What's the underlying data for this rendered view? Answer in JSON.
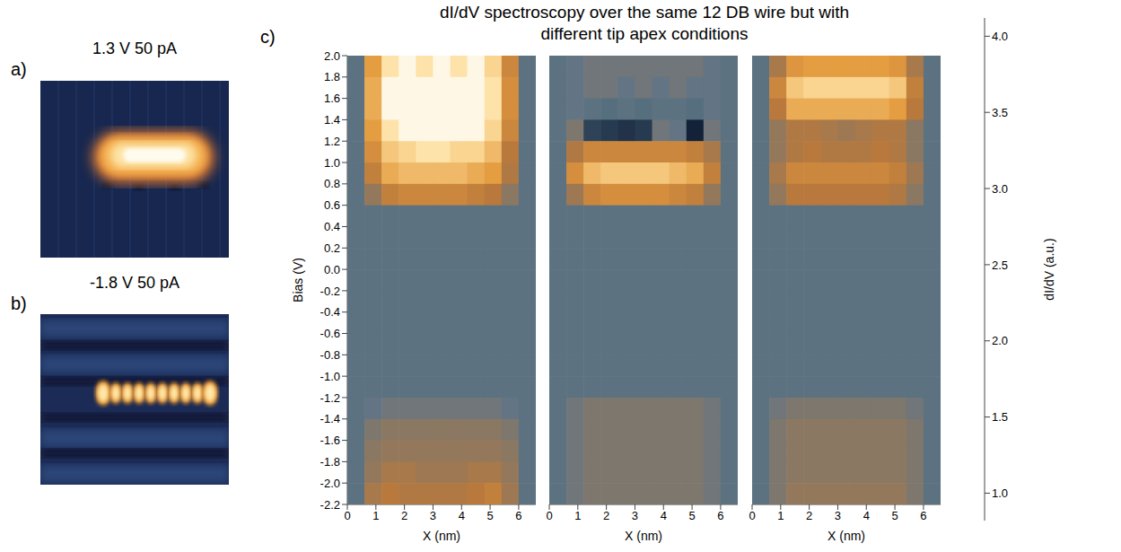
{
  "images": [
    {
      "label": "a)",
      "title": "1.3 V 50 pA"
    },
    {
      "label": "b)",
      "title": "-1.8 V 50 pA"
    }
  ],
  "chart_data": {
    "type": "heatmap",
    "label": "c)",
    "title": "dI/dV spectroscopy over the same 12 DB wire but with different tip apex conditions",
    "x_label": "X (nm)",
    "y_label": "Bias (V)",
    "xlim": [
      0,
      6.6
    ],
    "xticks": [
      0,
      1,
      2,
      3,
      4,
      5,
      6
    ],
    "ylim": [
      -2.2,
      2
    ],
    "yticks": [
      {
        "value": 2,
        "label": "2.0"
      },
      {
        "value": 1.8,
        "label": "1.8"
      },
      {
        "value": 1.6,
        "label": "1.6"
      },
      {
        "value": 1.4,
        "label": "1.4"
      },
      {
        "value": 1.2,
        "label": "1.2"
      },
      {
        "value": 1,
        "label": "1.0"
      },
      {
        "value": 0.8,
        "label": "0.8"
      },
      {
        "value": 0.6,
        "label": "0.6"
      },
      {
        "value": 0.4,
        "label": "0.4"
      },
      {
        "value": 0.2,
        "label": "0.2"
      },
      {
        "value": 0,
        "label": "0.0"
      },
      {
        "value": -0.2,
        "label": "-0.2"
      },
      {
        "value": -0.4,
        "label": "-0.4"
      },
      {
        "value": -0.6,
        "label": "-0.6"
      },
      {
        "value": -0.8,
        "label": "-0.8"
      },
      {
        "value": -1,
        "label": "-1.0"
      },
      {
        "value": -1.2,
        "label": "-1.2"
      },
      {
        "value": -1.4,
        "label": "-1.4"
      },
      {
        "value": -1.6,
        "label": "-1.6"
      },
      {
        "value": -1.8,
        "label": "-1.8"
      },
      {
        "value": -2,
        "label": "-2.0"
      },
      {
        "value": -2.2,
        "label": "-2.2"
      }
    ],
    "x": [
      0.3,
      0.9,
      1.5,
      2.1,
      2.7,
      3.3,
      3.9,
      4.5,
      5.1,
      5.7,
      6.3
    ],
    "y": [
      1.9,
      1.7,
      1.5,
      1.3,
      1.1,
      0.9,
      0.7,
      0.5,
      0.3,
      0.1,
      -0.1,
      -0.3,
      -0.5,
      -0.7,
      -0.9,
      -1.1,
      -1.3,
      -1.5,
      -1.7,
      -1.9,
      -2.1
    ],
    "panels": [
      {
        "cells": [
          [
            2.1,
            3.5,
            4.0,
            4.1,
            4.0,
            4.1,
            4.0,
            4.1,
            3.9,
            3.2,
            2.1
          ],
          [
            2.1,
            3.6,
            4.1,
            4.1,
            4.1,
            4.1,
            4.1,
            4.1,
            4.0,
            3.3,
            2.1
          ],
          [
            2.1,
            3.6,
            4.1,
            4.1,
            4.1,
            4.1,
            4.1,
            4.1,
            4.0,
            3.3,
            2.1
          ],
          [
            2.1,
            3.5,
            4.0,
            4.1,
            4.1,
            4.1,
            4.1,
            4.1,
            3.9,
            3.2,
            2.1
          ],
          [
            2.1,
            3.3,
            3.8,
            3.9,
            4.0,
            4.0,
            3.9,
            3.9,
            3.7,
            3.0,
            2.1
          ],
          [
            2.1,
            3.1,
            3.6,
            3.7,
            3.7,
            3.7,
            3.7,
            3.6,
            3.5,
            2.9,
            2.1
          ],
          [
            2.1,
            2.6,
            3.1,
            3.2,
            3.2,
            3.2,
            3.2,
            3.1,
            3.0,
            2.5,
            2.1
          ],
          [
            2.1,
            2.1,
            2.1,
            2.1,
            2.1,
            2.1,
            2.1,
            2.1,
            2.1,
            2.1,
            2.1
          ],
          [
            2.1,
            2.1,
            2.1,
            2.1,
            2.1,
            2.1,
            2.1,
            2.1,
            2.1,
            2.1,
            2.1
          ],
          [
            2.1,
            2.1,
            2.1,
            2.1,
            2.1,
            2.1,
            2.1,
            2.1,
            2.1,
            2.1,
            2.1
          ],
          [
            2.1,
            2.1,
            2.1,
            2.1,
            2.1,
            2.1,
            2.1,
            2.1,
            2.1,
            2.1,
            2.1
          ],
          [
            2.1,
            2.1,
            2.1,
            2.1,
            2.1,
            2.1,
            2.1,
            2.1,
            2.1,
            2.1,
            2.1
          ],
          [
            2.1,
            2.1,
            2.1,
            2.1,
            2.1,
            2.1,
            2.1,
            2.1,
            2.1,
            2.1,
            2.1
          ],
          [
            2.1,
            2.1,
            2.1,
            2.1,
            2.1,
            2.1,
            2.1,
            2.1,
            2.1,
            2.1,
            2.1
          ],
          [
            2.1,
            2.1,
            2.1,
            2.1,
            2.1,
            2.1,
            2.1,
            2.1,
            2.1,
            2.1,
            2.1
          ],
          [
            2.1,
            2.1,
            2.1,
            2.1,
            2.1,
            2.1,
            2.1,
            2.1,
            2.1,
            2.1,
            2.1
          ],
          [
            2.1,
            2.2,
            2.3,
            2.3,
            2.3,
            2.3,
            2.3,
            2.3,
            2.3,
            2.2,
            2.1
          ],
          [
            2.1,
            2.4,
            2.5,
            2.5,
            2.5,
            2.5,
            2.5,
            2.5,
            2.5,
            2.4,
            2.1
          ],
          [
            2.1,
            2.5,
            2.6,
            2.6,
            2.6,
            2.6,
            2.6,
            2.6,
            2.6,
            2.5,
            2.1
          ],
          [
            2.1,
            2.6,
            2.8,
            2.8,
            2.7,
            2.7,
            2.7,
            2.8,
            2.8,
            2.6,
            2.1
          ],
          [
            2.1,
            2.8,
            3.0,
            2.9,
            2.9,
            2.9,
            2.9,
            3.0,
            3.1,
            2.7,
            2.1
          ]
        ]
      },
      {
        "tick_labels": "x",
        "cells": [
          [
            2.1,
            2.2,
            2.3,
            2.3,
            2.3,
            2.3,
            2.3,
            2.3,
            2.3,
            2.2,
            2.1
          ],
          [
            2.1,
            2.2,
            2.3,
            2.3,
            2.2,
            2.3,
            2.2,
            2.3,
            2.2,
            2.2,
            2.1
          ],
          [
            2.1,
            2.2,
            2.1,
            2.0,
            2.1,
            2.0,
            2.1,
            2.1,
            2.0,
            2.2,
            2.1
          ],
          [
            2.1,
            2.4,
            1.5,
            1.4,
            1.3,
            1.4,
            2.3,
            2.2,
            1.1,
            2.3,
            2.1
          ],
          [
            2.1,
            2.9,
            3.2,
            3.2,
            3.2,
            3.2,
            3.2,
            3.2,
            3.1,
            2.8,
            2.1
          ],
          [
            2.1,
            3.3,
            3.7,
            3.8,
            3.8,
            3.8,
            3.8,
            3.7,
            3.6,
            3.1,
            2.1
          ],
          [
            2.1,
            2.7,
            3.2,
            3.3,
            3.3,
            3.3,
            3.3,
            3.2,
            3.1,
            2.6,
            2.1
          ],
          [
            2.1,
            2.1,
            2.1,
            2.1,
            2.1,
            2.1,
            2.1,
            2.1,
            2.1,
            2.1,
            2.1
          ],
          [
            2.1,
            2.1,
            2.1,
            2.1,
            2.1,
            2.1,
            2.1,
            2.1,
            2.1,
            2.1,
            2.1
          ],
          [
            2.1,
            2.1,
            2.1,
            2.1,
            2.1,
            2.1,
            2.1,
            2.1,
            2.1,
            2.1,
            2.1
          ],
          [
            2.1,
            2.1,
            2.1,
            2.1,
            2.1,
            2.1,
            2.1,
            2.1,
            2.1,
            2.1,
            2.1
          ],
          [
            2.1,
            2.1,
            2.1,
            2.1,
            2.1,
            2.1,
            2.1,
            2.1,
            2.1,
            2.1,
            2.1
          ],
          [
            2.1,
            2.1,
            2.1,
            2.1,
            2.1,
            2.1,
            2.1,
            2.1,
            2.1,
            2.1,
            2.1
          ],
          [
            2.1,
            2.1,
            2.1,
            2.1,
            2.1,
            2.1,
            2.1,
            2.1,
            2.1,
            2.1,
            2.1
          ],
          [
            2.1,
            2.1,
            2.1,
            2.1,
            2.1,
            2.1,
            2.1,
            2.1,
            2.1,
            2.1,
            2.1
          ],
          [
            2.1,
            2.1,
            2.1,
            2.1,
            2.1,
            2.1,
            2.1,
            2.1,
            2.1,
            2.1,
            2.1
          ],
          [
            2.1,
            2.3,
            2.4,
            2.4,
            2.4,
            2.4,
            2.4,
            2.4,
            2.4,
            2.3,
            2.1
          ],
          [
            2.1,
            2.3,
            2.4,
            2.4,
            2.4,
            2.4,
            2.4,
            2.4,
            2.4,
            2.3,
            2.1
          ],
          [
            2.1,
            2.3,
            2.4,
            2.4,
            2.4,
            2.4,
            2.4,
            2.4,
            2.4,
            2.3,
            2.1
          ],
          [
            2.1,
            2.3,
            2.4,
            2.4,
            2.4,
            2.4,
            2.4,
            2.4,
            2.4,
            2.3,
            2.1
          ],
          [
            2.1,
            2.3,
            2.4,
            2.4,
            2.4,
            2.4,
            2.4,
            2.4,
            2.4,
            2.3,
            2.1
          ]
        ]
      },
      {
        "tick_labels": "x",
        "cells": [
          [
            2.1,
            2.8,
            3.4,
            3.5,
            3.5,
            3.5,
            3.5,
            3.5,
            3.4,
            2.8,
            2.1
          ],
          [
            2.1,
            3.2,
            3.8,
            3.9,
            3.9,
            3.9,
            3.9,
            3.9,
            3.8,
            3.1,
            2.1
          ],
          [
            2.1,
            3.0,
            3.6,
            3.6,
            3.6,
            3.6,
            3.6,
            3.6,
            3.5,
            3.0,
            2.1
          ],
          [
            2.1,
            2.6,
            2.9,
            2.9,
            2.8,
            2.7,
            2.8,
            2.9,
            2.9,
            2.5,
            2.1
          ],
          [
            2.1,
            2.6,
            2.9,
            3.0,
            2.9,
            2.9,
            2.9,
            3.0,
            2.9,
            2.5,
            2.1
          ],
          [
            2.1,
            2.8,
            3.2,
            3.2,
            3.2,
            3.2,
            3.2,
            3.2,
            3.1,
            2.7,
            2.1
          ],
          [
            2.1,
            2.6,
            3.0,
            3.0,
            3.0,
            3.0,
            3.0,
            3.0,
            2.9,
            2.5,
            2.1
          ],
          [
            2.1,
            2.1,
            2.1,
            2.1,
            2.1,
            2.1,
            2.1,
            2.1,
            2.1,
            2.1,
            2.1
          ],
          [
            2.1,
            2.1,
            2.1,
            2.1,
            2.1,
            2.1,
            2.1,
            2.1,
            2.1,
            2.1,
            2.1
          ],
          [
            2.1,
            2.1,
            2.1,
            2.1,
            2.1,
            2.1,
            2.1,
            2.1,
            2.1,
            2.1,
            2.1
          ],
          [
            2.1,
            2.1,
            2.1,
            2.1,
            2.1,
            2.1,
            2.1,
            2.1,
            2.1,
            2.1,
            2.1
          ],
          [
            2.1,
            2.1,
            2.1,
            2.1,
            2.1,
            2.1,
            2.1,
            2.1,
            2.1,
            2.1,
            2.1
          ],
          [
            2.1,
            2.1,
            2.1,
            2.1,
            2.1,
            2.1,
            2.1,
            2.1,
            2.1,
            2.1,
            2.1
          ],
          [
            2.1,
            2.1,
            2.1,
            2.1,
            2.1,
            2.1,
            2.1,
            2.1,
            2.1,
            2.1,
            2.1
          ],
          [
            2.1,
            2.1,
            2.1,
            2.1,
            2.1,
            2.1,
            2.1,
            2.1,
            2.1,
            2.1,
            2.1
          ],
          [
            2.1,
            2.1,
            2.1,
            2.1,
            2.1,
            2.1,
            2.1,
            2.1,
            2.1,
            2.1,
            2.1
          ],
          [
            2.1,
            2.3,
            2.4,
            2.4,
            2.4,
            2.4,
            2.4,
            2.4,
            2.4,
            2.3,
            2.1
          ],
          [
            2.1,
            2.4,
            2.5,
            2.5,
            2.5,
            2.5,
            2.5,
            2.5,
            2.5,
            2.4,
            2.1
          ],
          [
            2.1,
            2.4,
            2.5,
            2.5,
            2.5,
            2.5,
            2.5,
            2.5,
            2.5,
            2.4,
            2.1
          ],
          [
            2.1,
            2.4,
            2.5,
            2.5,
            2.5,
            2.5,
            2.5,
            2.5,
            2.5,
            2.4,
            2.1
          ],
          [
            2.1,
            2.4,
            2.6,
            2.6,
            2.6,
            2.6,
            2.6,
            2.6,
            2.6,
            2.4,
            2.1
          ]
        ]
      }
    ],
    "colorbar": {
      "label": "dI/dV (a.u.)",
      "range": [
        0.82,
        4.12
      ],
      "ticks": [
        {
          "value": 1,
          "label": "1.0"
        },
        {
          "value": 1.5,
          "label": "1.5"
        },
        {
          "value": 2,
          "label": "2.0"
        },
        {
          "value": 2.5,
          "label": "2.5"
        },
        {
          "value": 3,
          "label": "3.0"
        },
        {
          "value": 3.5,
          "label": "3.5"
        },
        {
          "value": 4,
          "label": "4.0"
        }
      ]
    }
  }
}
